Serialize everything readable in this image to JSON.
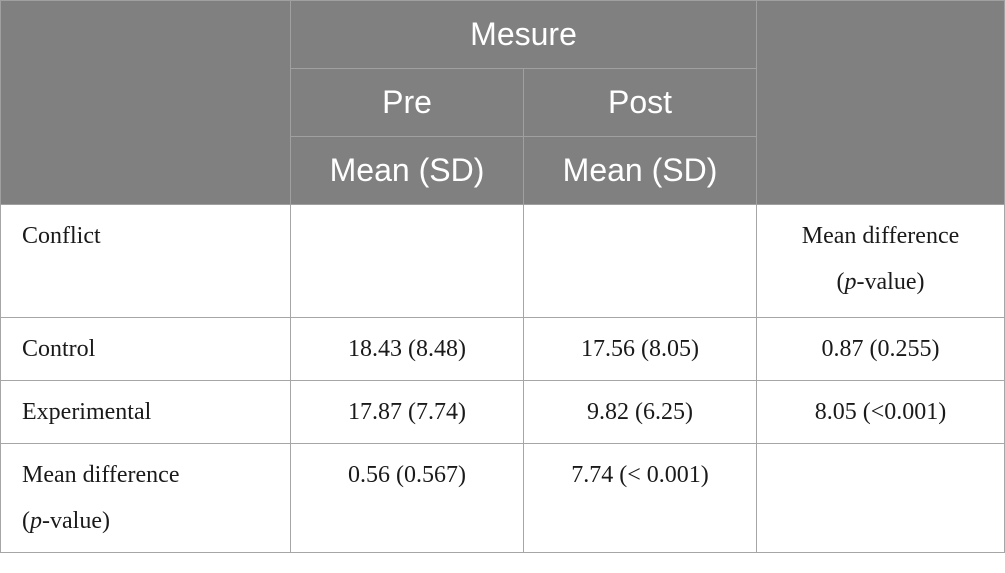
{
  "header": {
    "group_label": "Mesure",
    "pre_label": "Pre",
    "post_label": "Post",
    "pre_stat": "Mean (SD)",
    "post_stat": "Mean (SD)"
  },
  "rows": {
    "conflict": {
      "label": "Conflict",
      "md_header_line1": "Mean difference",
      "md_header_p": "p",
      "md_header_rest": "-value)",
      "md_header_open": "("
    },
    "control": {
      "label": "Control",
      "pre": "18.43 (8.48)",
      "post": "17.56 (8.05)",
      "diff": "0.87 (0.255)"
    },
    "experimental": {
      "label": "Experimental",
      "pre": "17.87 (7.74)",
      "post": "9.82 (6.25)",
      "diff": "8.05 (<0.001)"
    },
    "mean_difference": {
      "label_line1": "Mean difference",
      "label_open": "(",
      "label_p": "p",
      "label_rest": "-value)",
      "pre": "0.56 (0.567)",
      "post": "7.74 (< 0.001)"
    }
  }
}
